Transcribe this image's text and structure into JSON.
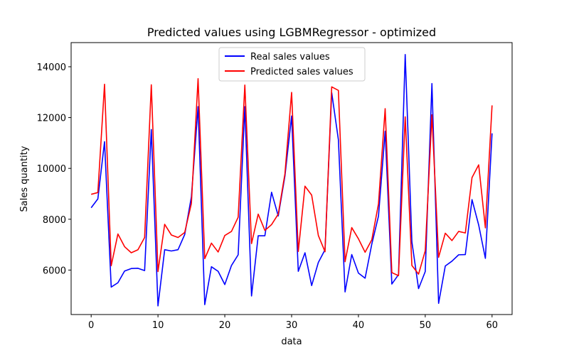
{
  "chart_data": {
    "type": "line",
    "title": "Predicted values using LGBMRegressor - optimized",
    "xlabel": "data",
    "ylabel": "Sales quantity",
    "xlim": [
      -3,
      63
    ],
    "ylim": [
      4250,
      14950
    ],
    "xticks": [
      0,
      10,
      20,
      30,
      40,
      50,
      60
    ],
    "yticks": [
      6000,
      8000,
      10000,
      12000,
      14000
    ],
    "grid": false,
    "legend_position": "top-center",
    "x": [
      0,
      1,
      2,
      3,
      4,
      5,
      6,
      7,
      8,
      9,
      10,
      11,
      12,
      13,
      14,
      15,
      16,
      17,
      18,
      19,
      20,
      21,
      22,
      23,
      24,
      25,
      26,
      27,
      28,
      29,
      30,
      31,
      32,
      33,
      34,
      35,
      36,
      37,
      38,
      39,
      40,
      41,
      42,
      43,
      44,
      45,
      46,
      47,
      48,
      49,
      50,
      51,
      52,
      53,
      54,
      55,
      56,
      57,
      58,
      59,
      60
    ],
    "series": [
      {
        "name": "Real sales values",
        "color": "#0000ff",
        "values": [
          8450,
          8800,
          11050,
          5330,
          5500,
          5960,
          6060,
          6070,
          5980,
          11530,
          4590,
          6800,
          6750,
          6800,
          7400,
          8880,
          12430,
          4640,
          6130,
          5950,
          5430,
          6180,
          6600,
          12430,
          4980,
          7350,
          7350,
          9060,
          8130,
          9700,
          12060,
          5950,
          6680,
          5390,
          6300,
          6800,
          12980,
          11130,
          5140,
          6610,
          5880,
          5680,
          7020,
          8120,
          11460,
          5450,
          5820,
          14480,
          7110,
          5270,
          5940,
          13340,
          4690,
          6160,
          6350,
          6600,
          6610,
          8770,
          7770,
          6460,
          11380
        ]
      },
      {
        "name": "Predicted sales values",
        "color": "#ff0000",
        "values": [
          8980,
          9050,
          13310,
          6170,
          7420,
          6920,
          6680,
          6800,
          7280,
          13290,
          5940,
          7800,
          7380,
          7280,
          7480,
          8620,
          13530,
          6450,
          7060,
          6710,
          7360,
          7520,
          8080,
          13280,
          7040,
          8200,
          7560,
          7790,
          8200,
          9790,
          12990,
          6730,
          9300,
          8950,
          7360,
          6720,
          13210,
          13070,
          6330,
          7670,
          7230,
          6700,
          7190,
          8600,
          12350,
          5900,
          5780,
          12030,
          6180,
          5840,
          6760,
          12110,
          6500,
          7450,
          7160,
          7520,
          7460,
          9640,
          10140,
          7660,
          12480
        ]
      }
    ]
  }
}
